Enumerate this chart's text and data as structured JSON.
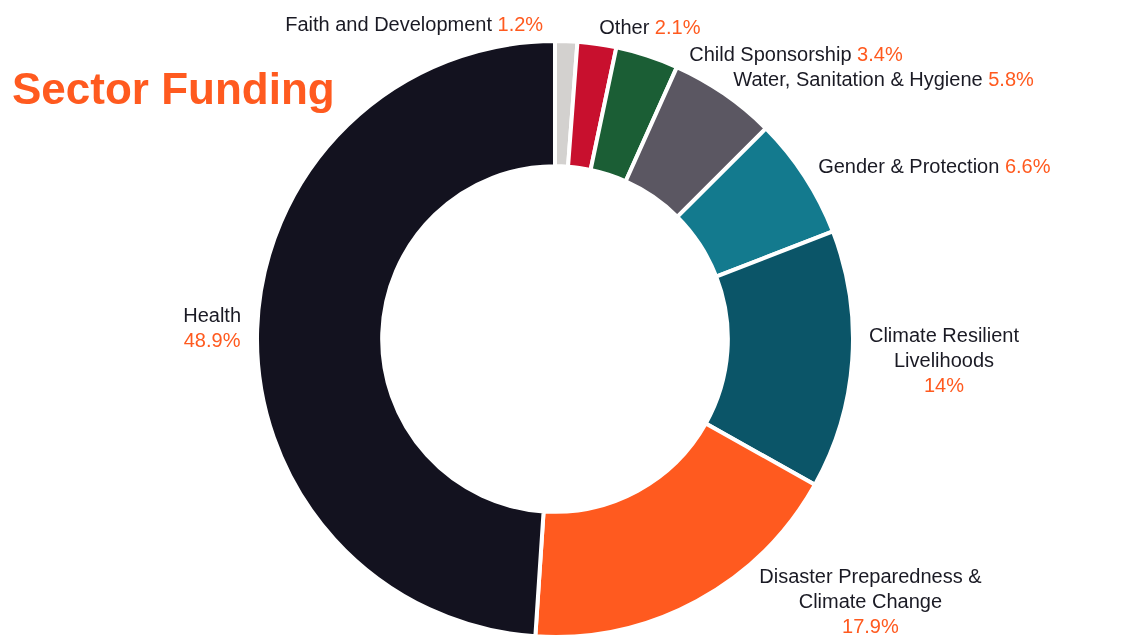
{
  "chart_data": {
    "type": "donut",
    "title": "Sector Funding",
    "categories": [
      "Faith and Development",
      "Other",
      "Child Sponsorship",
      "Water, Sanitation & Hygiene",
      "Gender & Protection",
      "Climate Resilient Livelihoods",
      "Disaster Preparedness & Climate Change",
      "Health"
    ],
    "values": [
      1.2,
      2.1,
      3.4,
      5.8,
      6.6,
      14,
      17.9,
      48.9
    ],
    "colors": [
      "#d3d1cf",
      "#c8102e",
      "#1b5e35",
      "#5b5762",
      "#137a8e",
      "#0b5568",
      "#ff5a1f",
      "#13121f"
    ],
    "value_labels": [
      "1.2%",
      "2.1%",
      "3.4%",
      "5.8%",
      "6.6%",
      "14%",
      "17.9%",
      "48.9%"
    ],
    "legend": false
  }
}
